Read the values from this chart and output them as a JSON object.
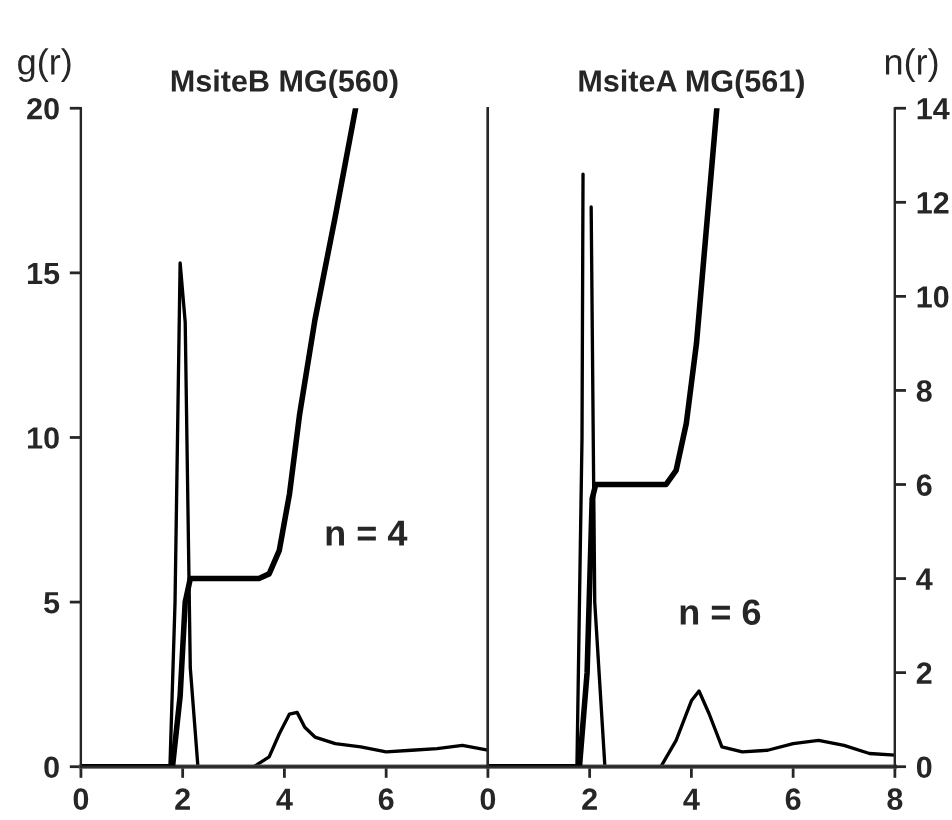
{
  "chart_data": [
    {
      "type": "line",
      "title": "MsiteB MG(560)",
      "ylabel": "g(r)",
      "xlim": [
        0,
        8
      ],
      "xticks": [
        0,
        2,
        4,
        6
      ],
      "ylim": [
        0,
        20
      ],
      "yticks": [
        0,
        5,
        10,
        15,
        20
      ],
      "y2lim": [
        0,
        14
      ],
      "tick_labels": [
        "x",
        "y"
      ],
      "annotations": [
        "n = 4"
      ],
      "series": [
        {
          "color": "#000000",
          "x": [
            0,
            1.75,
            1.85,
            1.95,
            2.05,
            2.15,
            2.3,
            3.4,
            3.7,
            3.9,
            4.1,
            4.25,
            4.4,
            4.6,
            5,
            5.5,
            6,
            6.5,
            7,
            7.5,
            8
          ],
          "values": [
            0,
            0,
            5,
            15.3,
            13.5,
            3,
            0,
            0,
            0.3,
            1.0,
            1.6,
            1.65,
            1.2,
            0.9,
            0.7,
            0.6,
            0.45,
            0.5,
            0.55,
            0.65,
            0.5
          ]
        },
        {
          "color": "#000000",
          "axis": "y2",
          "x": [
            0,
            1.8,
            1.95,
            2.05,
            2.15,
            2.4,
            3.5,
            3.7,
            3.9,
            4.1,
            4.3,
            4.6,
            5,
            5.4
          ],
          "values": [
            0,
            0,
            1.5,
            3.5,
            4,
            4,
            4,
            4.1,
            4.6,
            5.8,
            7.5,
            9.5,
            11.7,
            14
          ]
        }
      ]
    },
    {
      "type": "line",
      "title": "MsiteA MG(561)",
      "y2label": "n(r)",
      "xlim": [
        0,
        8
      ],
      "xticks": [
        0,
        2,
        4,
        6,
        8
      ],
      "ylim": [
        0,
        20
      ],
      "y2lim": [
        0,
        14
      ],
      "y2ticks": [
        0,
        2,
        4,
        6,
        8,
        10,
        12,
        14
      ],
      "tick_labels": [
        "x",
        "y2"
      ],
      "annotations": [
        "n = 6"
      ],
      "series": [
        {
          "color": "#000000",
          "x": [
            0,
            1.75,
            1.85,
            1.87,
            1.93,
            2.03,
            2.1,
            2.3,
            3.4,
            3.7,
            4.0,
            4.15,
            4.35,
            4.6,
            5,
            5.5,
            6,
            6.5,
            7,
            7.5,
            8
          ],
          "values": [
            0,
            0,
            10,
            18,
            null,
            17,
            5,
            0,
            0,
            0.8,
            2.0,
            2.3,
            1.6,
            0.6,
            0.45,
            0.5,
            0.7,
            0.8,
            0.65,
            0.4,
            0.35
          ]
        },
        {
          "color": "#000000",
          "axis": "y2",
          "x": [
            0,
            1.8,
            1.95,
            2.05,
            2.12,
            2.5,
            3.5,
            3.7,
            3.9,
            4.1,
            4.3,
            4.5
          ],
          "values": [
            0,
            0,
            2,
            5.7,
            6,
            6,
            6,
            6.3,
            7.3,
            9,
            11.5,
            14
          ]
        }
      ]
    }
  ]
}
